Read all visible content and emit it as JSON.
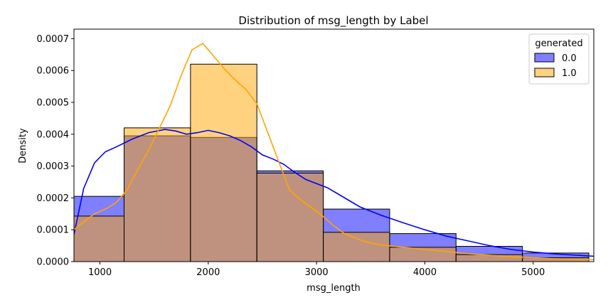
{
  "chart_data": {
    "type": "histogram",
    "title": "Distribution of msg_length by Label",
    "xlabel": "msg_length",
    "ylabel": "Density",
    "xlim": [
      760,
      5560
    ],
    "ylim": [
      0,
      0.00073
    ],
    "x_ticks": [
      1000,
      2000,
      3000,
      4000,
      5000
    ],
    "y_ticks": [
      0.0,
      0.0001,
      0.0002,
      0.0003,
      0.0004,
      0.0005,
      0.0006,
      0.0007
    ],
    "y_tick_labels": [
      "0.0000",
      "0.0001",
      "0.0002",
      "0.0003",
      "0.0004",
      "0.0005",
      "0.0006",
      "0.0007"
    ],
    "bin_edges": [
      760,
      1223,
      1836,
      2449,
      3062,
      3675,
      4288,
      4901,
      5514
    ],
    "legend": {
      "title": "generated",
      "position": "top-right"
    },
    "series": [
      {
        "name": "0.0",
        "color": "#0000ff",
        "fill_alpha": 0.5,
        "values": [
          0.000205,
          0.000395,
          0.00039,
          0.000285,
          0.000165,
          8.8e-05,
          4.8e-05,
          2.7e-05
        ],
        "kde": {
          "x": [
            760,
            850,
            950,
            1050,
            1150,
            1300,
            1450,
            1600,
            1700,
            1800,
            1900,
            2000,
            2100,
            2200,
            2300,
            2400,
            2500,
            2600,
            2700,
            2800,
            2900,
            3000,
            3100,
            3200,
            3300,
            3400,
            3600,
            3800,
            4000,
            4200,
            4400,
            4600,
            4800,
            5000,
            5200,
            5400,
            5560
          ],
          "y": [
            8.5e-05,
            0.00023,
            0.00031,
            0.000345,
            0.00036,
            0.000385,
            0.000405,
            0.000415,
            0.00041,
            0.0004,
            0.000405,
            0.000412,
            0.000405,
            0.000395,
            0.00038,
            0.00036,
            0.000335,
            0.000322,
            0.000305,
            0.00028,
            0.000258,
            0.000245,
            0.000232,
            0.000212,
            0.000192,
            0.000172,
            0.000145,
            0.000122,
            0.0001,
            8e-05,
            6.5e-05,
            5e-05,
            3.8e-05,
            3e-05,
            2.4e-05,
            2e-05,
            1.7e-05
          ]
        }
      },
      {
        "name": "1.0",
        "color": "#ffa500",
        "fill_alpha": 0.5,
        "values": [
          0.000143,
          0.00042,
          0.00062,
          0.000278,
          9.2e-05,
          4.5e-05,
          2.2e-05,
          1.2e-05
        ],
        "kde": {
          "x": [
            760,
            850,
            950,
            1050,
            1150,
            1250,
            1350,
            1450,
            1550,
            1650,
            1750,
            1850,
            1950,
            2050,
            2150,
            2250,
            2350,
            2450,
            2550,
            2650,
            2750,
            2850,
            2950,
            3050,
            3150,
            3250,
            3350,
            3450,
            3600,
            3800,
            4000,
            4200,
            4400,
            4600,
            4800,
            5000,
            5200,
            5400,
            5560
          ],
          "y": [
            0.0001,
            0.000125,
            0.00015,
            0.000165,
            0.000185,
            0.000225,
            0.00029,
            0.00035,
            0.00042,
            0.00049,
            0.000585,
            0.000665,
            0.000685,
            0.000645,
            0.000605,
            0.00057,
            0.00054,
            0.000495,
            0.000405,
            0.000315,
            0.000225,
            0.000195,
            0.00017,
            0.000145,
            0.000115,
            9e-05,
            7.5e-05,
            6.2e-05,
            5.2e-05,
            4.5e-05,
            3.8e-05,
            3.2e-05,
            2.5e-05,
            2e-05,
            1.5e-05,
            1.2e-05,
            9e-06,
            7e-06,
            6e-06
          ]
        }
      }
    ]
  }
}
